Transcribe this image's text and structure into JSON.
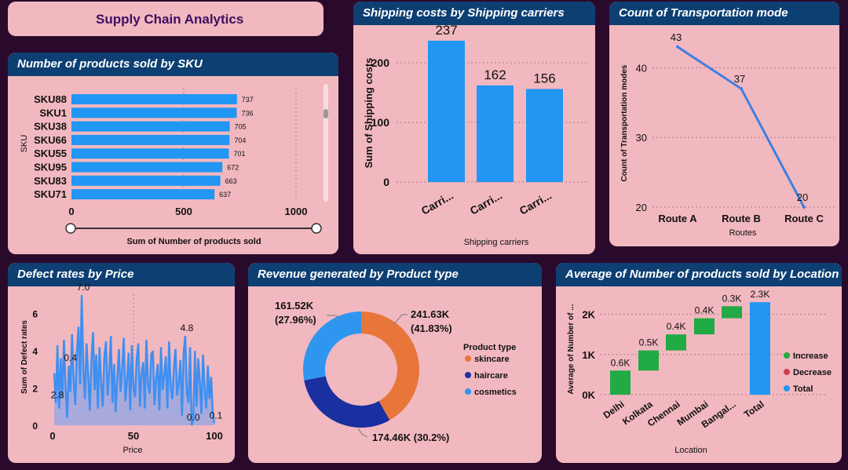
{
  "page_title": "Supply Chain Analytics",
  "panels": {
    "sku": "Number of products sold by SKU",
    "carriers": "Shipping costs by Shipping carriers",
    "transport": "Count of Transportation mode",
    "defect": "Defect rates by Price",
    "revenue": "Revenue generated by Product type",
    "location": "Average of Number of products sold by Location"
  },
  "chart_data": [
    {
      "id": "sku",
      "type": "bar",
      "orientation": "horizontal",
      "categories": [
        "SKU88",
        "SKU1",
        "SKU38",
        "SKU66",
        "SKU55",
        "SKU95",
        "SKU83",
        "SKU71"
      ],
      "values": [
        737,
        736,
        705,
        704,
        701,
        672,
        663,
        637
      ],
      "xlabel": "Sum of Number of products sold",
      "ylabel": "SKU",
      "xticks": [
        "0",
        "500",
        "1000"
      ],
      "xlim": [
        0,
        1000
      ],
      "color": "#2196f3"
    },
    {
      "id": "carriers",
      "type": "bar",
      "categories": [
        "Carri...",
        "Carri...",
        "Carri..."
      ],
      "values": [
        237,
        162,
        156
      ],
      "data_labels": [
        "237",
        "162",
        "156"
      ],
      "xlabel": "Shipping carriers",
      "ylabel": "Sum of Shipping costs",
      "yticks": [
        "0",
        "100",
        "200"
      ],
      "ylim": [
        0,
        250
      ],
      "color": "#2196f3"
    },
    {
      "id": "transport",
      "type": "line",
      "categories": [
        "Route A",
        "Route B",
        "Route C"
      ],
      "values": [
        43,
        37,
        20
      ],
      "data_labels": [
        "43",
        "37",
        "20"
      ],
      "xlabel": "Routes",
      "ylabel": "Count of Transportation modes",
      "yticks": [
        "20",
        "30",
        "40"
      ],
      "ylim": [
        20,
        45
      ],
      "color": "#3f7fe0"
    },
    {
      "id": "defect",
      "type": "area",
      "x": [
        1,
        2,
        3,
        4,
        5,
        6,
        7,
        8,
        9,
        10,
        11,
        12,
        13,
        14,
        15,
        16,
        17,
        18,
        19,
        20,
        21,
        22,
        23,
        24,
        25,
        26,
        27,
        28,
        29,
        30,
        31,
        32,
        33,
        34,
        35,
        36,
        37,
        38,
        39,
        40,
        41,
        42,
        43,
        44,
        45,
        46,
        47,
        48,
        49,
        50,
        51,
        52,
        53,
        54,
        55,
        56,
        57,
        58,
        59,
        60,
        61,
        62,
        63,
        64,
        65,
        66,
        67,
        68,
        69,
        70,
        71,
        72,
        73,
        74,
        75,
        76,
        77,
        78,
        79,
        80,
        81,
        82,
        83,
        84,
        85,
        86,
        87,
        88,
        89,
        90,
        91,
        92,
        93,
        94,
        95,
        96,
        97,
        98,
        99,
        100
      ],
      "values": [
        2.8,
        1.2,
        4.3,
        0.9,
        3.6,
        1.5,
        4.6,
        2.1,
        0.4,
        3.2,
        1.8,
        4.9,
        2.5,
        1.1,
        3.9,
        5.3,
        2.2,
        7.0,
        3.1,
        1.4,
        4.4,
        2.7,
        0.8,
        3.5,
        5.0,
        1.9,
        3.8,
        0.9,
        4.2,
        2.3,
        1.0,
        3.7,
        4.5,
        1.6,
        2.9,
        4.8,
        1.2,
        3.3,
        0.7,
        2.6,
        4.1,
        1.8,
        3.0,
        4.7,
        1.3,
        2.4,
        3.9,
        0.8,
        4.3,
        2.0,
        1.5,
        3.6,
        4.4,
        1.0,
        2.8,
        3.4,
        0.9,
        4.6,
        2.2,
        1.7,
        3.8,
        4.0,
        1.1,
        2.5,
        3.3,
        0.8,
        4.2,
        1.9,
        2.7,
        3.7,
        0.9,
        4.5,
        2.1,
        1.4,
        3.1,
        4.1,
        1.6,
        2.3,
        3.5,
        0.5,
        3.9,
        4.8,
        1.8,
        1.2,
        4.2,
        0.0,
        0.3,
        4.0,
        1.0,
        3.6,
        2.4,
        0.6,
        3.8,
        2.0,
        0.9,
        3.2,
        1.4,
        2.6,
        0.7,
        0.1
      ],
      "annotations": [
        {
          "x": 2,
          "label": "2.8"
        },
        {
          "x": 10,
          "label": "0.4"
        },
        {
          "x": 18,
          "label": "7.0"
        },
        {
          "x": 82,
          "label": "4.8"
        },
        {
          "x": 86,
          "label": "0.0"
        },
        {
          "x": 100,
          "label": "0.1"
        }
      ],
      "xlabel": "Price",
      "ylabel": "Sum of Defect rates",
      "xticks": [
        "0",
        "50",
        "100"
      ],
      "yticks": [
        "0",
        "2",
        "4",
        "6"
      ],
      "xlim": [
        0,
        100
      ],
      "ylim": [
        0,
        7
      ],
      "color": "#3f8ff0"
    },
    {
      "id": "revenue",
      "type": "pie",
      "style": "donut",
      "categories": [
        "skincare",
        "haircare",
        "cosmetics"
      ],
      "values": [
        241.63,
        174.46,
        161.52
      ],
      "data_labels": [
        "241.63K",
        "174.46K (30.2%)",
        "161.52K"
      ],
      "percent_labels": [
        "(41.83%)",
        "",
        "(27.96%)"
      ],
      "colors": [
        "#e8763a",
        "#1a2fa0",
        "#2f96f0"
      ],
      "legend_title": "Product type",
      "legend_position": "right"
    },
    {
      "id": "location",
      "type": "bar",
      "style": "waterfall",
      "categories": [
        "Delhi",
        "Kolkata",
        "Chennai",
        "Mumbai",
        "Bangal...",
        "Total"
      ],
      "values": [
        0.6,
        0.5,
        0.4,
        0.4,
        0.3,
        2.3
      ],
      "data_labels": [
        "0.6K",
        "0.5K",
        "0.4K",
        "0.4K",
        "0.3K",
        "2.3K"
      ],
      "xlabel": "Location",
      "ylabel": "Average of Number of ...",
      "yticks": [
        "0K",
        "1K",
        "2K"
      ],
      "ylim": [
        0,
        2.4
      ],
      "legend": [
        "Increase",
        "Decrease",
        "Total"
      ],
      "legend_colors": [
        "#22aa44",
        "#d04050",
        "#2196f3"
      ],
      "legend_position": "right"
    }
  ]
}
